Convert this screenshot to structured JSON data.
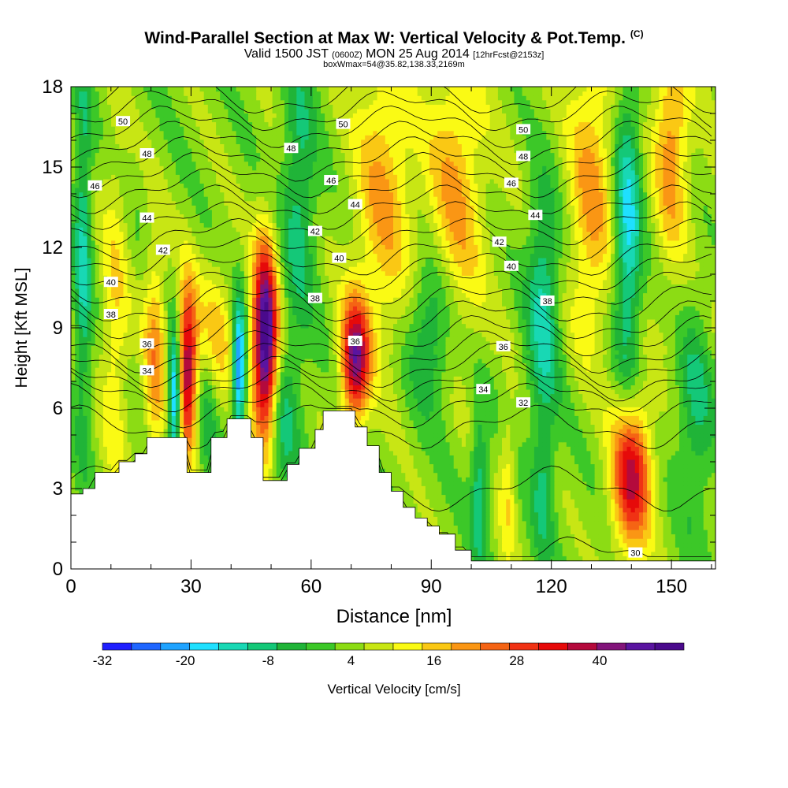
{
  "header": {
    "title": "Wind-Parallel Section at Max W: Vertical Velocity & Pot.Temp.",
    "copyright": "(C)",
    "valid_prefix": "Valid 1500 JST",
    "valid_utc": "(0600Z)",
    "valid_day": "MON 25 Aug 2014",
    "forecast": "[12hrFcst@2153z]",
    "box_info": "boxWmax=54@35.82,138.33,2169m"
  },
  "chart_data": {
    "type": "heatmap",
    "title": "Wind-Parallel Section at Max W: Vertical Velocity & Pot.Temp.",
    "xlabel": "Distance [nm]",
    "ylabel": "Height [Kft MSL]",
    "xlim": [
      0,
      161
    ],
    "ylim": [
      0,
      18
    ],
    "x_ticks": [
      "0",
      "30",
      "60",
      "90",
      "120",
      "150"
    ],
    "y_ticks": [
      "0",
      "3",
      "6",
      "9",
      "12",
      "15",
      "18"
    ],
    "colorbar": {
      "label": "Vertical Velocity [cm/s]",
      "tick_labels": [
        "-32",
        "-20",
        "-8",
        "4",
        "16",
        "28",
        "40"
      ],
      "boundaries": [
        -32,
        -28,
        -24,
        -20,
        -16,
        -12,
        -8,
        -4,
        0,
        4,
        8,
        12,
        16,
        20,
        24,
        28,
        32,
        36,
        40,
        44,
        48
      ],
      "colors": [
        "#1f1fff",
        "#1f66ff",
        "#1fa3ff",
        "#1fe0ff",
        "#18d8b4",
        "#14c878",
        "#20b438",
        "#3cc828",
        "#8cdc14",
        "#c8e614",
        "#fafa14",
        "#fac814",
        "#fa9614",
        "#f56414",
        "#f03214",
        "#e60a0a",
        "#b40a3c",
        "#82147a",
        "#5a14a0",
        "#4a0a8c"
      ]
    },
    "w_features": [
      {
        "x": 3,
        "y": 12,
        "w": -14,
        "sx": 1.5,
        "sy": 5
      },
      {
        "x": 11,
        "y": 9,
        "w": 10,
        "sx": 2.5,
        "sy": 5
      },
      {
        "x": 21,
        "y": 8,
        "w": 16,
        "sx": 2,
        "sy": 3
      },
      {
        "x": 26,
        "y": 6.5,
        "w": -30,
        "sx": 1.2,
        "sy": 1.8
      },
      {
        "x": 29,
        "y": 7.5,
        "w": 36,
        "sx": 1.8,
        "sy": 2.2
      },
      {
        "x": 34,
        "y": 5.8,
        "w": -10,
        "sx": 2,
        "sy": 2
      },
      {
        "x": 36,
        "y": 8.5,
        "w": 12,
        "sx": 3.5,
        "sy": 2
      },
      {
        "x": 42,
        "y": 7.5,
        "w": -30,
        "sx": 1.2,
        "sy": 1.8
      },
      {
        "x": 48.5,
        "y": 8.5,
        "w": 48,
        "sx": 2.2,
        "sy": 2.5
      },
      {
        "x": 53,
        "y": 5.5,
        "w": -10,
        "sx": 2.5,
        "sy": 2
      },
      {
        "x": 57,
        "y": 14,
        "w": -12,
        "sx": 3,
        "sy": 4
      },
      {
        "x": 71,
        "y": 7.8,
        "w": 36,
        "sx": 2.5,
        "sy": 1.6
      },
      {
        "x": 78,
        "y": 14,
        "w": 14,
        "sx": 5,
        "sy": 4
      },
      {
        "x": 90,
        "y": 9,
        "w": -14,
        "sx": 4,
        "sy": 2
      },
      {
        "x": 96,
        "y": 14,
        "w": 14,
        "sx": 5,
        "sy": 4
      },
      {
        "x": 102,
        "y": 3,
        "w": -14,
        "sx": 1.5,
        "sy": 2
      },
      {
        "x": 109,
        "y": 3,
        "w": 10,
        "sx": 1.5,
        "sy": 2
      },
      {
        "x": 118,
        "y": 10,
        "w": -16,
        "sx": 3,
        "sy": 3
      },
      {
        "x": 118,
        "y": 3,
        "w": -10,
        "sx": 2,
        "sy": 2
      },
      {
        "x": 130,
        "y": 14,
        "w": 14,
        "sx": 4,
        "sy": 4
      },
      {
        "x": 139,
        "y": 12.5,
        "w": -20,
        "sx": 2.5,
        "sy": 4
      },
      {
        "x": 140,
        "y": 3.5,
        "w": 32,
        "sx": 3.5,
        "sy": 2
      },
      {
        "x": 150,
        "y": 16,
        "w": 16,
        "sx": 3,
        "sy": 3
      },
      {
        "x": 156,
        "y": 6,
        "w": -10,
        "sx": 3,
        "sy": 3
      }
    ],
    "terrain": [
      {
        "x": 0,
        "h": 2.8
      },
      {
        "x": 3,
        "h": 3.0
      },
      {
        "x": 6,
        "h": 3.6
      },
      {
        "x": 12,
        "h": 4.0
      },
      {
        "x": 16,
        "h": 4.3
      },
      {
        "x": 19,
        "h": 4.9
      },
      {
        "x": 25,
        "h": 4.9
      },
      {
        "x": 29,
        "h": 3.6
      },
      {
        "x": 35,
        "h": 4.9
      },
      {
        "x": 39,
        "h": 5.6
      },
      {
        "x": 45,
        "h": 4.9
      },
      {
        "x": 48,
        "h": 3.3
      },
      {
        "x": 54,
        "h": 3.9
      },
      {
        "x": 57,
        "h": 4.5
      },
      {
        "x": 61,
        "h": 5.2
      },
      {
        "x": 63,
        "h": 5.9
      },
      {
        "x": 71,
        "h": 5.3
      },
      {
        "x": 74,
        "h": 4.6
      },
      {
        "x": 77,
        "h": 3.6
      },
      {
        "x": 80,
        "h": 2.9
      },
      {
        "x": 83,
        "h": 2.3
      },
      {
        "x": 86,
        "h": 1.9
      },
      {
        "x": 89,
        "h": 1.6
      },
      {
        "x": 92,
        "h": 1.3
      },
      {
        "x": 96,
        "h": 0.7
      },
      {
        "x": 100,
        "h": 0.3
      },
      {
        "x": 102,
        "h": 0.3
      },
      {
        "x": 161,
        "h": 0.3
      }
    ],
    "theta_contours": [
      {
        "theta": 30,
        "base": 0.4
      },
      {
        "theta": 31,
        "base": 3.0
      },
      {
        "theta": 32,
        "base": 5.3
      },
      {
        "theta": 33,
        "base": 6.1
      },
      {
        "theta": 34,
        "base": 6.7
      },
      {
        "theta": 35,
        "base": 7.1
      },
      {
        "theta": 36,
        "base": 7.6
      },
      {
        "theta": 37,
        "base": 8.1
      },
      {
        "theta": 38,
        "base": 8.7
      },
      {
        "theta": 39,
        "base": 9.3
      },
      {
        "theta": 40,
        "base": 9.9
      },
      {
        "theta": 41,
        "base": 10.5
      },
      {
        "theta": 42,
        "base": 11.1
      },
      {
        "theta": 43,
        "base": 11.7
      },
      {
        "theta": 44,
        "base": 12.3
      },
      {
        "theta": 45,
        "base": 12.9
      },
      {
        "theta": 46,
        "base": 13.5
      },
      {
        "theta": 47,
        "base": 14.1
      },
      {
        "theta": 48,
        "base": 14.7
      },
      {
        "theta": 49,
        "base": 15.3
      },
      {
        "theta": 50,
        "base": 15.9
      },
      {
        "theta": 51,
        "base": 16.5
      },
      {
        "theta": 52,
        "base": 17.1
      },
      {
        "theta": 53,
        "base": 17.7
      }
    ],
    "contour_labels": [
      {
        "text": "50",
        "x": 13,
        "y": 16.7
      },
      {
        "text": "48",
        "x": 19,
        "y": 15.5
      },
      {
        "text": "46",
        "x": 6,
        "y": 14.3
      },
      {
        "text": "44",
        "x": 19,
        "y": 13.1
      },
      {
        "text": "42",
        "x": 23,
        "y": 11.9
      },
      {
        "text": "40",
        "x": 10,
        "y": 10.7
      },
      {
        "text": "38",
        "x": 10,
        "y": 9.5
      },
      {
        "text": "36",
        "x": 19,
        "y": 8.4
      },
      {
        "text": "34",
        "x": 19,
        "y": 7.4
      },
      {
        "text": "50",
        "x": 68,
        "y": 16.6
      },
      {
        "text": "48",
        "x": 55,
        "y": 15.7
      },
      {
        "text": "46",
        "x": 65,
        "y": 14.5
      },
      {
        "text": "44",
        "x": 71,
        "y": 13.6
      },
      {
        "text": "42",
        "x": 61,
        "y": 12.6
      },
      {
        "text": "40",
        "x": 67,
        "y": 11.6
      },
      {
        "text": "38",
        "x": 61,
        "y": 10.1
      },
      {
        "text": "36",
        "x": 71,
        "y": 8.5
      },
      {
        "text": "50",
        "x": 113,
        "y": 16.4
      },
      {
        "text": "48",
        "x": 113,
        "y": 15.4
      },
      {
        "text": "46",
        "x": 110,
        "y": 14.4
      },
      {
        "text": "44",
        "x": 116,
        "y": 13.2
      },
      {
        "text": "42",
        "x": 107,
        "y": 12.2
      },
      {
        "text": "40",
        "x": 110,
        "y": 11.3
      },
      {
        "text": "38",
        "x": 119,
        "y": 10.0
      },
      {
        "text": "36",
        "x": 108,
        "y": 8.3
      },
      {
        "text": "34",
        "x": 103,
        "y": 6.7
      },
      {
        "text": "32",
        "x": 113,
        "y": 6.2
      },
      {
        "text": "30",
        "x": 141,
        "y": 0.6
      }
    ]
  }
}
